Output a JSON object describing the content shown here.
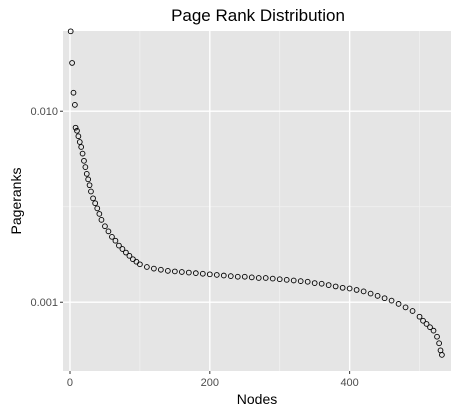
{
  "chart_data": {
    "type": "scatter",
    "title": "Page Rank Distribution",
    "xlabel": "Nodes",
    "ylabel": "Pageranks",
    "x_range": [
      -10,
      545
    ],
    "y_range_log10": [
      -3.36,
      -1.58
    ],
    "y_scale": "log10",
    "x_ticks": [
      0,
      200,
      400
    ],
    "y_ticks": [
      0.001,
      0.01
    ],
    "x_tick_labels": [
      "0",
      "200",
      "400"
    ],
    "y_tick_labels": [
      "0.001",
      "0.010"
    ],
    "grid": true,
    "legend": "none",
    "point_style": "hollow-circle",
    "point_color": "#000000",
    "panel_color": "#e5e5e5",
    "grid_major_color": "#ffffff",
    "grid_minor_color": "#f2f2f2",
    "series": [
      {
        "x": [
          1,
          3,
          5,
          7,
          8,
          10,
          12,
          14,
          16,
          18,
          20,
          22,
          24,
          26,
          28,
          30,
          33,
          36,
          39,
          42,
          45,
          50,
          55,
          60,
          65,
          70,
          75,
          80,
          85,
          90,
          95,
          100,
          110,
          120,
          130,
          140,
          150,
          160,
          170,
          180,
          190,
          200,
          210,
          220,
          230,
          240,
          250,
          260,
          270,
          280,
          290,
          300,
          310,
          320,
          330,
          340,
          350,
          360,
          370,
          380,
          390,
          400,
          410,
          420,
          430,
          440,
          450,
          460,
          470,
          480,
          490,
          500,
          505,
          510,
          515,
          520,
          525,
          528,
          530,
          532
        ],
        "y": [
          0.0262,
          0.0179,
          0.0125,
          0.0108,
          0.0082,
          0.0079,
          0.0074,
          0.0069,
          0.0065,
          0.006,
          0.0055,
          0.0051,
          0.0047,
          0.0044,
          0.0041,
          0.0038,
          0.0035,
          0.0033,
          0.0031,
          0.0029,
          0.0027,
          0.0025,
          0.00235,
          0.0022,
          0.0021,
          0.00198,
          0.0019,
          0.00182,
          0.00175,
          0.00168,
          0.00163,
          0.00158,
          0.00153,
          0.0015,
          0.00148,
          0.00146,
          0.00145,
          0.00144,
          0.00143,
          0.00142,
          0.00141,
          0.0014,
          0.00139,
          0.00138,
          0.00137,
          0.00136,
          0.00136,
          0.00135,
          0.00134,
          0.00134,
          0.00133,
          0.00132,
          0.00131,
          0.0013,
          0.00129,
          0.00128,
          0.00126,
          0.00125,
          0.00123,
          0.00121,
          0.00119,
          0.00118,
          0.00116,
          0.00114,
          0.00111,
          0.00108,
          0.00105,
          0.00102,
          0.00098,
          0.00094,
          0.0009,
          0.00084,
          0.0008,
          0.00077,
          0.00074,
          0.00071,
          0.00066,
          0.00061,
          0.00056,
          0.00053
        ]
      }
    ]
  }
}
